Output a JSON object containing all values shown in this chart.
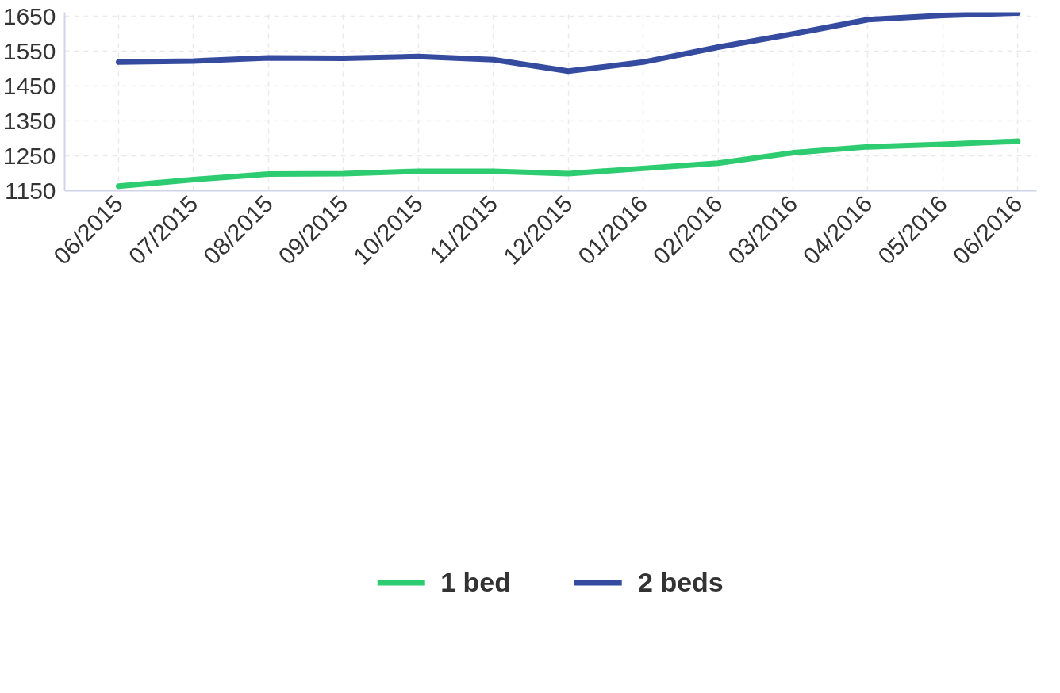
{
  "chart_data": {
    "type": "line",
    "categories": [
      "06/2015",
      "07/2015",
      "08/2015",
      "09/2015",
      "10/2015",
      "11/2015",
      "12/2015",
      "01/2016",
      "02/2016",
      "03/2016",
      "04/2016",
      "05/2016",
      "06/2016"
    ],
    "series": [
      {
        "name": "1 bed",
        "color": "#2ecc71",
        "values": [
          1163,
          1182,
          1198,
          1199,
          1206,
          1206,
          1199,
          1214,
          1229,
          1259,
          1276,
          1283,
          1292
        ]
      },
      {
        "name": "2 beds",
        "color": "#354ba0",
        "values": [
          1519,
          1522,
          1531,
          1530,
          1535,
          1526,
          1493,
          1519,
          1562,
          1600,
          1641,
          1653,
          1660
        ]
      }
    ],
    "ylim": [
      1150,
      1662
    ],
    "yticks": [
      1150,
      1250,
      1350,
      1450,
      1550,
      1650
    ],
    "grid": true,
    "legend": "bottom",
    "marker": "none",
    "line_style": "solid"
  }
}
